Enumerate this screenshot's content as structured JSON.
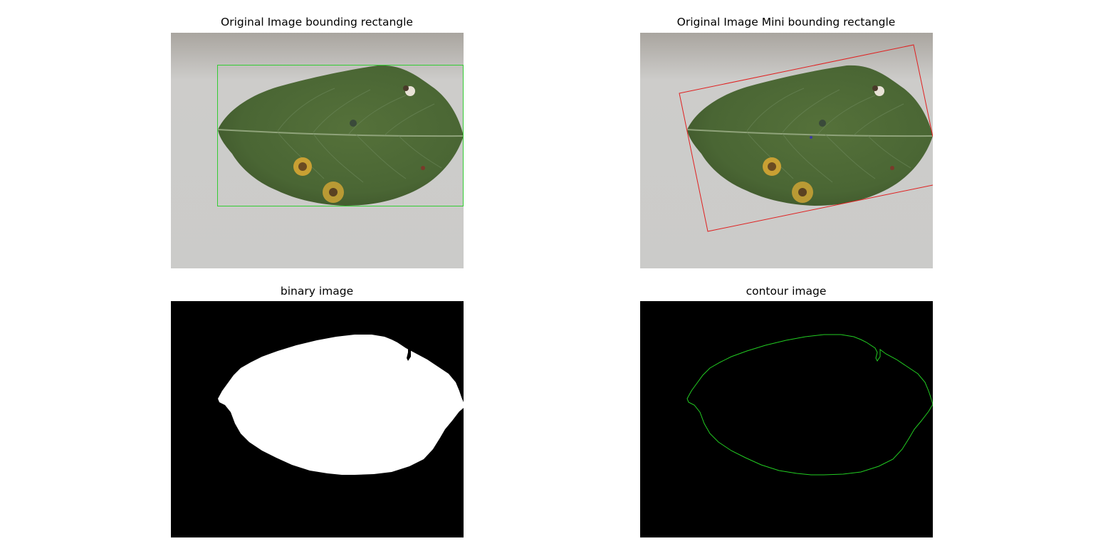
{
  "figure": {
    "panels": [
      {
        "title": "Original Image bounding rectangle",
        "overlay": "axis-aligned bounding rectangle",
        "overlay_color": "#33cc33"
      },
      {
        "title": "Original Image Mini bounding rectangle",
        "overlay": "rotated minimum-area rectangle",
        "overlay_color": "#e02020"
      },
      {
        "title": "binary image",
        "foreground": "#ffffff",
        "background": "#000000"
      },
      {
        "title": "contour image",
        "contour_color": "#22cc22",
        "background": "#000000"
      }
    ]
  },
  "colors": {
    "leaf": "#4d6a36",
    "leaf_dark": "#3e5a2c",
    "backdrop": "#cfcfcc",
    "spot": "#c9a033"
  }
}
